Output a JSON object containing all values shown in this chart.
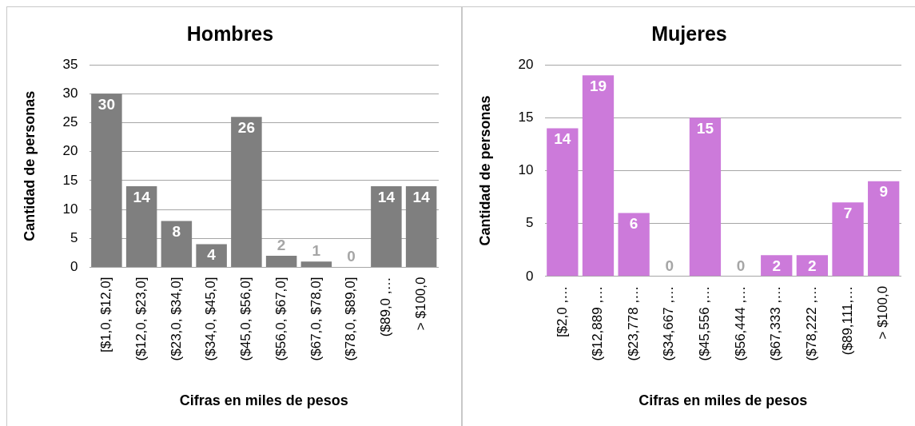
{
  "chart_data": [
    {
      "type": "bar",
      "title": "Hombres",
      "xlabel": "Cifras en miles de pesos",
      "ylabel": "Cantidad de personas",
      "categories": [
        "[$1,0, $12,0]",
        "($12,0, $23,0]",
        "($23,0, $34,0]",
        "($34,0, $45,0]",
        "($45,0, $56,0]",
        "($56,0, $67,0]",
        "($67,0, $78,0]",
        "($78,0, $89,0]",
        "($89,0 ,…",
        "> $100,0"
      ],
      "values": [
        30,
        14,
        8,
        4,
        26,
        2,
        1,
        0,
        14,
        14
      ],
      "color": "#7f7f7f",
      "ylim": [
        0,
        35
      ],
      "yticks": [
        0,
        5,
        10,
        15,
        20,
        25,
        30,
        35
      ],
      "grid": "y",
      "data_labels": true
    },
    {
      "type": "bar",
      "title": "Mujeres",
      "xlabel": "Cifras en miles de pesos",
      "ylabel": "Cantidad de personas",
      "categories": [
        "[$2,0 ,…",
        "($12,889 ,…",
        "($23,778 ,…",
        "($34,667 ,…",
        "($45,556 ,…",
        "($56,444 ,…",
        "($67,333 ,…",
        "($78,222 ,…",
        "($89,111,…",
        "> $100,0"
      ],
      "values": [
        14,
        19,
        6,
        0,
        15,
        0,
        2,
        2,
        7,
        9
      ],
      "color": "#cc7ada",
      "ylim": [
        0,
        20
      ],
      "yticks": [
        0,
        5,
        10,
        15,
        20
      ],
      "grid": "y",
      "data_labels": true
    }
  ]
}
